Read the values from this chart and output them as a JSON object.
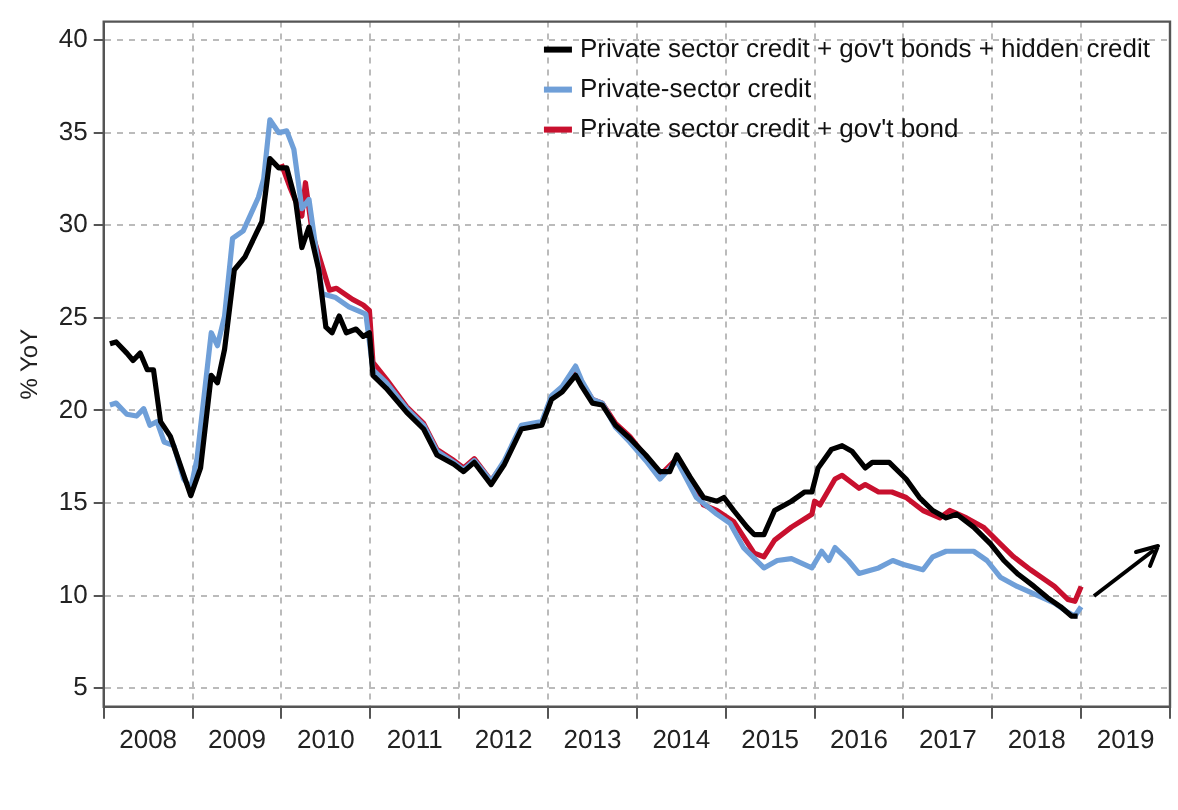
{
  "chart_data": {
    "type": "line",
    "ylabel": "% YoY",
    "xlim": [
      2008,
      2020
    ],
    "ylim": [
      4,
      41
    ],
    "xticks": [
      {
        "value": 2008,
        "label": null
      },
      {
        "value": 2008.5,
        "label": "2008"
      },
      {
        "value": 2009,
        "label": null
      },
      {
        "value": 2009.5,
        "label": "2009"
      },
      {
        "value": 2010,
        "label": null
      },
      {
        "value": 2010.5,
        "label": "2010"
      },
      {
        "value": 2011,
        "label": null
      },
      {
        "value": 2011.5,
        "label": "2011"
      },
      {
        "value": 2012,
        "label": null
      },
      {
        "value": 2012.5,
        "label": "2012"
      },
      {
        "value": 2013,
        "label": null
      },
      {
        "value": 2013.5,
        "label": "2013"
      },
      {
        "value": 2014,
        "label": null
      },
      {
        "value": 2014.5,
        "label": "2014"
      },
      {
        "value": 2015,
        "label": null
      },
      {
        "value": 2015.5,
        "label": "2015"
      },
      {
        "value": 2016,
        "label": null
      },
      {
        "value": 2016.5,
        "label": "2016"
      },
      {
        "value": 2017,
        "label": null
      },
      {
        "value": 2017.5,
        "label": "2017"
      },
      {
        "value": 2018,
        "label": null
      },
      {
        "value": 2018.5,
        "label": "2018"
      },
      {
        "value": 2019,
        "label": null
      },
      {
        "value": 2019.5,
        "label": "2019"
      },
      {
        "value": 2020,
        "label": null
      }
    ],
    "yticks": [
      5,
      10,
      15,
      20,
      25,
      30,
      35,
      40
    ],
    "grid": true,
    "legend": "top right",
    "marker": "none",
    "series": [
      {
        "name": "Private sector credit + gov't bonds + hidden credit",
        "color": "#000000",
        "x": [
          2008.07,
          2008.14,
          2008.26,
          2008.33,
          2008.41,
          2008.49,
          2008.56,
          2008.64,
          2008.75,
          2008.83,
          2008.98,
          2009.09,
          2009.21,
          2009.28,
          2009.36,
          2009.47,
          2009.59,
          2009.78,
          2009.87,
          2009.97,
          2010.06,
          2010.16,
          2010.23,
          2010.31,
          2010.42,
          2010.5,
          2010.57,
          2010.65,
          2010.73,
          2010.84,
          2010.92,
          2010.99,
          2011.03,
          2011.18,
          2011.41,
          2011.6,
          2011.75,
          2011.94,
          2012.05,
          2012.17,
          2012.36,
          2012.51,
          2012.7,
          2012.93,
          2013.04,
          2013.16,
          2013.31,
          2013.38,
          2013.5,
          2013.61,
          2013.76,
          2013.92,
          2014.1,
          2014.26,
          2014.37,
          2014.45,
          2014.6,
          2014.75,
          2014.9,
          2014.98,
          2015.09,
          2015.24,
          2015.32,
          2015.43,
          2015.55,
          2015.74,
          2015.89,
          2015.97,
          2016.04,
          2016.19,
          2016.31,
          2016.42,
          2016.57,
          2016.65,
          2016.84,
          2017.03,
          2017.18,
          2017.33,
          2017.48,
          2017.6,
          2017.79,
          2017.98,
          2018.13,
          2018.28,
          2018.47,
          2018.62,
          2018.77,
          2018.89,
          2018.96
        ],
        "values": [
          23.6,
          23.7,
          23.1,
          22.7,
          23.1,
          22.2,
          22.2,
          19.4,
          18.6,
          17.5,
          15.4,
          16.9,
          21.9,
          21.5,
          23.3,
          27.6,
          28.3,
          30.2,
          33.6,
          33.1,
          33.1,
          31.3,
          28.8,
          29.9,
          27.6,
          24.5,
          24.2,
          25.1,
          24.2,
          24.4,
          24.0,
          24.2,
          21.9,
          21.2,
          19.9,
          19.0,
          17.6,
          17.1,
          16.7,
          17.2,
          16.0,
          17.1,
          19.0,
          19.2,
          20.6,
          21.0,
          21.9,
          21.3,
          20.4,
          20.3,
          19.2,
          18.5,
          17.6,
          16.7,
          16.7,
          17.6,
          16.4,
          15.3,
          15.1,
          15.3,
          14.6,
          13.7,
          13.3,
          13.3,
          14.6,
          15.1,
          15.6,
          15.6,
          16.9,
          17.9,
          18.1,
          17.8,
          16.9,
          17.2,
          17.2,
          16.3,
          15.3,
          14.6,
          14.2,
          14.4,
          13.7,
          12.8,
          11.9,
          11.2,
          10.5,
          9.9,
          9.4,
          8.9,
          8.9
        ]
      },
      {
        "name": "Private-sector credit",
        "color": "#6f9fd8",
        "x": [
          2008.07,
          2008.14,
          2008.26,
          2008.37,
          2008.45,
          2008.52,
          2008.6,
          2008.68,
          2008.79,
          2008.9,
          2008.98,
          2009.05,
          2009.21,
          2009.28,
          2009.36,
          2009.45,
          2009.57,
          2009.74,
          2009.8,
          2009.87,
          2009.97,
          2010.06,
          2010.14,
          2010.23,
          2010.31,
          2010.46,
          2010.61,
          2010.76,
          2010.95,
          2011.03,
          2011.18,
          2011.41,
          2011.6,
          2011.75,
          2011.94,
          2012.05,
          2012.17,
          2012.36,
          2012.51,
          2012.7,
          2012.93,
          2013.04,
          2013.16,
          2013.31,
          2013.38,
          2013.5,
          2013.61,
          2013.76,
          2013.92,
          2014.1,
          2014.26,
          2014.45,
          2014.67,
          2014.9,
          2015.05,
          2015.2,
          2015.43,
          2015.58,
          2015.74,
          2015.97,
          2016.08,
          2016.16,
          2016.23,
          2016.38,
          2016.5,
          2016.72,
          2016.88,
          2016.99,
          2017.22,
          2017.33,
          2017.48,
          2017.79,
          2017.94,
          2018.09,
          2018.28,
          2018.47,
          2018.7,
          2018.85,
          2018.93,
          2019.0
        ],
        "values": [
          20.3,
          20.4,
          19.8,
          19.7,
          20.1,
          19.2,
          19.4,
          18.3,
          18.1,
          16.3,
          15.8,
          17.4,
          24.2,
          23.5,
          25.1,
          29.3,
          29.7,
          31.5,
          32.5,
          35.7,
          35.0,
          35.1,
          34.1,
          30.9,
          31.4,
          26.3,
          26.1,
          25.6,
          25.2,
          22.2,
          21.5,
          20.1,
          19.2,
          17.8,
          17.2,
          16.8,
          17.3,
          16.2,
          17.3,
          19.2,
          19.4,
          20.8,
          21.3,
          22.4,
          21.6,
          20.6,
          20.4,
          19.1,
          18.3,
          17.3,
          16.3,
          17.3,
          15.3,
          14.4,
          13.9,
          12.6,
          11.5,
          11.9,
          12.0,
          11.5,
          12.4,
          11.9,
          12.6,
          11.9,
          11.2,
          11.5,
          11.9,
          11.7,
          11.4,
          12.1,
          12.4,
          12.4,
          11.9,
          11.0,
          10.5,
          10.1,
          9.6,
          9.1,
          8.9,
          9.4
        ]
      },
      {
        "name": "Private sector credit + gov't bond",
        "color": "#c8102e",
        "x": [
          2010.0,
          2010.1,
          2010.23,
          2010.27,
          2010.35,
          2010.54,
          2010.62,
          2010.8,
          2010.92,
          2010.99,
          2011.03,
          2011.18,
          2011.41,
          2011.6,
          2011.75,
          2011.94,
          2012.05,
          2012.17,
          2012.36,
          2012.51,
          2012.7,
          2012.93,
          2013.04,
          2013.16,
          2013.31,
          2013.38,
          2013.5,
          2013.61,
          2013.76,
          2013.92,
          2014.1,
          2014.26,
          2014.45,
          2014.6,
          2014.75,
          2014.9,
          2015.09,
          2015.32,
          2015.43,
          2015.55,
          2015.74,
          2015.97,
          2016.0,
          2016.06,
          2016.23,
          2016.31,
          2016.5,
          2016.57,
          2016.72,
          2016.87,
          2017.03,
          2017.22,
          2017.41,
          2017.52,
          2017.71,
          2017.9,
          2018.09,
          2018.24,
          2018.43,
          2018.55,
          2018.7,
          2018.85,
          2018.93,
          2019.0
        ],
        "values": [
          33.3,
          32.0,
          30.5,
          32.3,
          29.5,
          26.5,
          26.6,
          26.0,
          25.7,
          25.4,
          22.6,
          21.7,
          20.2,
          19.3,
          17.9,
          17.3,
          16.9,
          17.4,
          16.2,
          17.2,
          19.1,
          19.3,
          20.7,
          21.1,
          22.2,
          21.5,
          20.6,
          20.4,
          19.3,
          18.6,
          17.5,
          16.5,
          17.4,
          16.2,
          14.9,
          14.6,
          14.0,
          12.3,
          12.1,
          13.0,
          13.7,
          14.4,
          15.1,
          14.9,
          16.3,
          16.5,
          15.8,
          16.0,
          15.6,
          15.6,
          15.3,
          14.6,
          14.2,
          14.6,
          14.2,
          13.7,
          12.8,
          12.1,
          11.4,
          11.0,
          10.5,
          9.8,
          9.7,
          10.5
        ]
      }
    ]
  }
}
